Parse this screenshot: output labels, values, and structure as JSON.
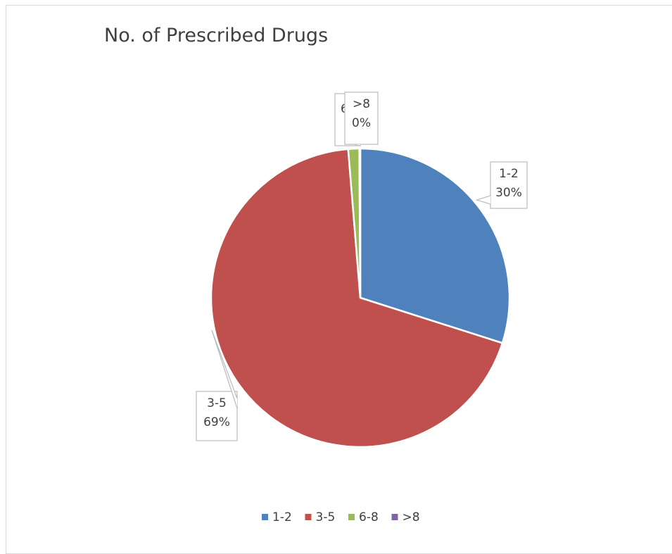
{
  "chart_data": {
    "type": "pie",
    "title": "No. of Prescribed Drugs",
    "legend_position": "bottom",
    "slices": [
      {
        "label": "1-2",
        "percent_label": "30%",
        "value": 30,
        "color": "#4f81bd"
      },
      {
        "label": "3-5",
        "percent_label": "69%",
        "value": 69,
        "color": "#c0504d"
      },
      {
        "label": "6-8",
        "percent_label": "",
        "value": 1.2,
        "color": "#9bbb59"
      },
      {
        "label": ">8",
        "percent_label": "0%",
        "value": 0.1,
        "color": "#8064a2"
      }
    ]
  }
}
